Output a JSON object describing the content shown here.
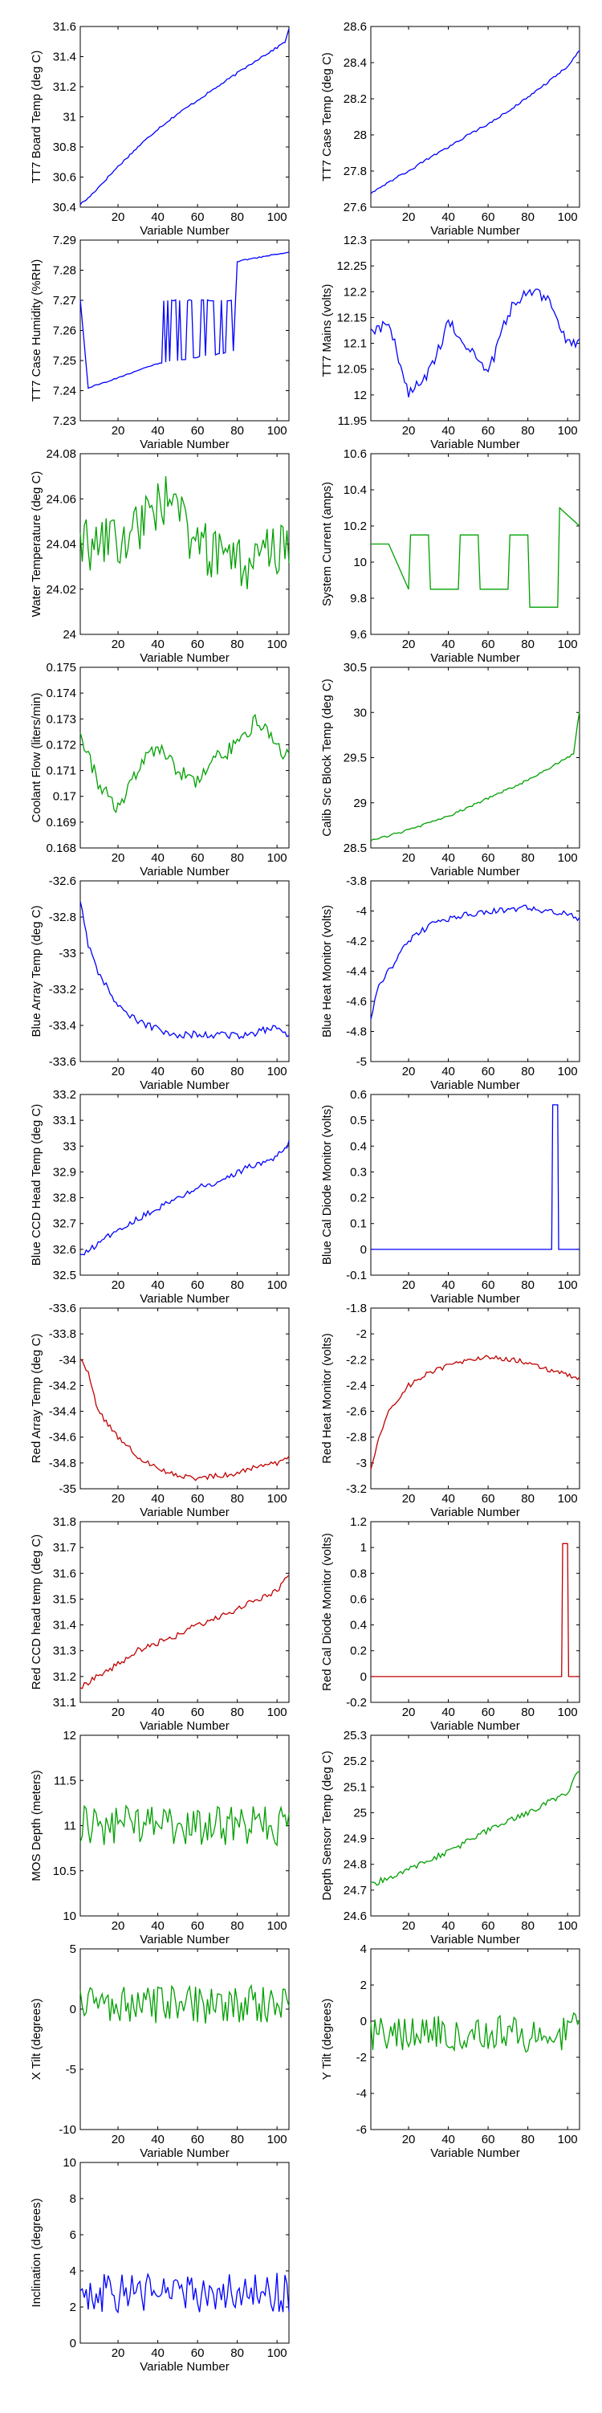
{
  "chart_data": [
    {
      "type": "line",
      "color": "#0000ff",
      "xlabel": "Variable Number",
      "ylabel": "TT7 Board Temp (deg C)",
      "xlim": [
        1,
        106
      ],
      "ylim": [
        30.4,
        31.6
      ],
      "xticks": [
        20,
        40,
        60,
        80,
        100
      ],
      "yticks": [
        "30.4",
        "30.6",
        "30.8",
        "31",
        "31.2",
        "31.4",
        "31.6"
      ],
      "signal": "trend",
      "x": [
        1,
        5,
        10,
        20,
        30,
        40,
        50,
        60,
        70,
        80,
        90,
        100,
        104,
        106
      ],
      "values": [
        30.42,
        30.46,
        30.53,
        30.67,
        30.8,
        30.92,
        31.02,
        31.11,
        31.2,
        31.29,
        31.38,
        31.46,
        31.5,
        31.58
      ]
    },
    {
      "type": "line",
      "color": "#0000ff",
      "xlabel": "Variable Number",
      "ylabel": "TT7 Case Temp (deg C)",
      "xlim": [
        1,
        106
      ],
      "ylim": [
        27.6,
        28.6
      ],
      "xticks": [
        20,
        40,
        60,
        80,
        100
      ],
      "yticks": [
        "27.6",
        "27.8",
        "28",
        "28.2",
        "28.4",
        "28.6"
      ],
      "signal": "trend",
      "x": [
        1,
        10,
        20,
        30,
        40,
        50,
        60,
        70,
        80,
        90,
        100,
        106
      ],
      "values": [
        27.68,
        27.74,
        27.8,
        27.87,
        27.93,
        28.0,
        28.06,
        28.13,
        28.21,
        28.29,
        28.38,
        28.47
      ]
    },
    {
      "type": "line",
      "color": "#0000ff",
      "xlabel": "Variable Number",
      "ylabel": "TT7 Case Humidity (%RH)",
      "xlim": [
        1,
        106
      ],
      "ylim": [
        7.23,
        7.29
      ],
      "xticks": [
        20,
        40,
        60,
        80,
        100
      ],
      "yticks": [
        "7.23",
        "7.24",
        "7.25",
        "7.26",
        "7.27",
        "7.28",
        "7.29"
      ],
      "signal": "humidity",
      "x": [
        1,
        5,
        10,
        40,
        78,
        80,
        106
      ],
      "values": [
        7.27,
        7.241,
        7.242,
        7.249,
        7.253,
        7.283,
        7.286
      ]
    },
    {
      "type": "line",
      "color": "#0000ff",
      "xlabel": "Variable Number",
      "ylabel": "TT7 Mains  (volts)",
      "xlim": [
        1,
        106
      ],
      "ylim": [
        11.95,
        12.3
      ],
      "xticks": [
        20,
        40,
        60,
        80,
        100
      ],
      "yticks": [
        "11.95",
        "12",
        "12.05",
        "12.1",
        "12.15",
        "12.2",
        "12.25",
        "12.3"
      ],
      "signal": "noisy",
      "noise": 0.012,
      "x": [
        1,
        10,
        20,
        30,
        40,
        50,
        60,
        70,
        80,
        90,
        100,
        106
      ],
      "values": [
        12.12,
        12.14,
        12.0,
        12.04,
        12.14,
        12.09,
        12.04,
        12.16,
        12.2,
        12.19,
        12.1,
        12.1
      ]
    },
    {
      "type": "line",
      "color": "#00a000",
      "xlabel": "Variable Number",
      "ylabel": "Water Temperature (deg C)",
      "xlim": [
        1,
        106
      ],
      "ylim": [
        24.0,
        24.08
      ],
      "xticks": [
        20,
        40,
        60,
        80,
        100
      ],
      "yticks": [
        "24",
        "24.02",
        "24.04",
        "24.06",
        "24.08"
      ],
      "signal": "noisy",
      "noise": 0.012,
      "x": [
        1,
        20,
        44,
        60,
        80,
        106
      ],
      "values": [
        24.04,
        24.04,
        24.06,
        24.04,
        24.03,
        24.04
      ]
    },
    {
      "type": "line",
      "color": "#00a000",
      "xlabel": "Variable Number",
      "ylabel": "System Current (amps)",
      "xlim": [
        1,
        106
      ],
      "ylim": [
        9.6,
        10.6
      ],
      "xticks": [
        20,
        40,
        60,
        80,
        100
      ],
      "yticks": [
        "9.6",
        "9.8",
        "10",
        "10.2",
        "10.4",
        "10.6"
      ],
      "signal": "steps",
      "x": [
        1,
        10,
        20,
        21,
        30,
        31,
        45,
        46,
        55,
        56,
        70,
        71,
        80,
        81,
        95,
        96,
        106
      ],
      "values": [
        10.1,
        10.1,
        9.85,
        10.15,
        10.15,
        9.85,
        9.85,
        10.15,
        10.15,
        9.85,
        9.85,
        10.15,
        10.15,
        9.75,
        9.75,
        10.3,
        10.2
      ]
    },
    {
      "type": "line",
      "color": "#00a000",
      "xlabel": "Variable Number",
      "ylabel": "Coolant Flow (liters/min)",
      "xlim": [
        1,
        106
      ],
      "ylim": [
        0.168,
        0.175
      ],
      "xticks": [
        20,
        40,
        60,
        80,
        100
      ],
      "yticks": [
        "0.168",
        "0.169",
        "0.17",
        "0.171",
        "0.172",
        "0.173",
        "0.174",
        "0.175"
      ],
      "signal": "noisy",
      "noise": 0.0003,
      "x": [
        1,
        10,
        20,
        30,
        40,
        50,
        60,
        70,
        80,
        90,
        100,
        106
      ],
      "values": [
        0.1725,
        0.1705,
        0.1695,
        0.171,
        0.172,
        0.171,
        0.1705,
        0.1715,
        0.172,
        0.173,
        0.172,
        0.1715
      ]
    },
    {
      "type": "line",
      "color": "#00a000",
      "xlabel": "Variable Number",
      "ylabel": "Calib Src Block Temp (deg C)",
      "xlim": [
        1,
        106
      ],
      "ylim": [
        28.5,
        30.5
      ],
      "xticks": [
        20,
        40,
        60,
        80,
        100
      ],
      "yticks": [
        "28.5",
        "29",
        "29.5",
        "30",
        "30.5"
      ],
      "signal": "trend",
      "x": [
        1,
        20,
        40,
        60,
        80,
        100,
        103,
        106
      ],
      "values": [
        28.58,
        28.7,
        28.85,
        29.05,
        29.25,
        29.5,
        29.55,
        30.02
      ]
    },
    {
      "type": "line",
      "color": "#0000ff",
      "xlabel": "Variable Number",
      "ylabel": "Blue Array Temp (deg C)",
      "xlim": [
        1,
        106
      ],
      "ylim": [
        -33.6,
        -32.6
      ],
      "xticks": [
        20,
        40,
        60,
        80,
        100
      ],
      "yticks": [
        "-32.6",
        "-32.8",
        "-33",
        "-33.2",
        "-33.4",
        "-33.6"
      ],
      "signal": "noisy",
      "noise": 0.02,
      "x": [
        1,
        5,
        10,
        20,
        30,
        40,
        50,
        60,
        70,
        80,
        90,
        100,
        106
      ],
      "values": [
        -32.7,
        -32.95,
        -33.1,
        -33.3,
        -33.38,
        -33.42,
        -33.45,
        -33.45,
        -33.45,
        -33.46,
        -33.44,
        -33.4,
        -33.45
      ]
    },
    {
      "type": "line",
      "color": "#0000ff",
      "xlabel": "Variable Number",
      "ylabel": "Blue Heat Monitor (volts)",
      "xlim": [
        1,
        106
      ],
      "ylim": [
        -5,
        -3.8
      ],
      "xticks": [
        20,
        40,
        60,
        80,
        100
      ],
      "yticks": [
        "-3.8",
        "-4",
        "-4.2",
        "-4.4",
        "-4.6",
        "-4.8",
        "-5"
      ],
      "signal": "noisy",
      "noise": 0.02,
      "x": [
        1,
        5,
        10,
        20,
        30,
        40,
        60,
        80,
        100,
        106
      ],
      "values": [
        -4.7,
        -4.5,
        -4.4,
        -4.2,
        -4.1,
        -4.05,
        -4.0,
        -3.98,
        -4.02,
        -4.05
      ]
    },
    {
      "type": "line",
      "color": "#0000ff",
      "xlabel": "Variable Number",
      "ylabel": "Blue CCD Head Temp (deg C)",
      "xlim": [
        1,
        106
      ],
      "ylim": [
        32.5,
        33.2
      ],
      "xticks": [
        20,
        40,
        60,
        80,
        100
      ],
      "yticks": [
        "32.5",
        "32.6",
        "32.7",
        "32.8",
        "32.9",
        "33",
        "33.1",
        "33.2"
      ],
      "signal": "noisy",
      "noise": 0.012,
      "x": [
        1,
        10,
        20,
        30,
        40,
        50,
        60,
        70,
        80,
        90,
        100,
        106
      ],
      "values": [
        32.57,
        32.62,
        32.68,
        32.72,
        32.76,
        32.8,
        32.84,
        32.86,
        32.9,
        32.93,
        32.96,
        33.01
      ]
    },
    {
      "type": "line",
      "color": "#0000ff",
      "xlabel": "Variable Number",
      "ylabel": "Blue Cal Diode Monitor (volts)",
      "xlim": [
        1,
        106
      ],
      "ylim": [
        -0.1,
        0.6
      ],
      "xticks": [
        20,
        40,
        60,
        80,
        100
      ],
      "yticks": [
        "-0.1",
        "0",
        "0.1",
        "0.2",
        "0.3",
        "0.4",
        "0.5",
        "0.6"
      ],
      "signal": "steps",
      "x": [
        1,
        92,
        92.5,
        95,
        95.5,
        106
      ],
      "values": [
        0,
        0,
        0.56,
        0.56,
        0,
        0
      ]
    },
    {
      "type": "line",
      "color": "#c00000",
      "xlabel": "Variable Number",
      "ylabel": "Red Array Temp (deg C)",
      "xlim": [
        1,
        106
      ],
      "ylim": [
        -35,
        -33.6
      ],
      "xticks": [
        20,
        40,
        60,
        80,
        100
      ],
      "yticks": [
        "-33.6",
        "-33.8",
        "-34",
        "-34.2",
        "-34.4",
        "-34.6",
        "-34.8",
        "-35"
      ],
      "signal": "noisy",
      "noise": 0.02,
      "x": [
        1,
        5,
        10,
        20,
        30,
        40,
        50,
        60,
        70,
        80,
        90,
        100,
        106
      ],
      "values": [
        -34.0,
        -34.1,
        -34.4,
        -34.6,
        -34.75,
        -34.85,
        -34.9,
        -34.92,
        -34.9,
        -34.88,
        -34.82,
        -34.8,
        -34.75
      ]
    },
    {
      "type": "line",
      "color": "#c00000",
      "xlabel": "Variable Number",
      "ylabel": "Red Heat Monitor (volts)",
      "xlim": [
        1,
        106
      ],
      "ylim": [
        -3.2,
        -1.8
      ],
      "xticks": [
        20,
        40,
        60,
        80,
        100
      ],
      "yticks": [
        "-1.8",
        "-2",
        "-2.2",
        "-2.4",
        "-2.6",
        "-2.8",
        "-3",
        "-3.2"
      ],
      "signal": "noisy",
      "noise": 0.02,
      "x": [
        1,
        5,
        10,
        20,
        30,
        40,
        50,
        60,
        70,
        80,
        90,
        100,
        106
      ],
      "values": [
        -3.05,
        -2.8,
        -2.6,
        -2.4,
        -2.3,
        -2.25,
        -2.2,
        -2.18,
        -2.2,
        -2.22,
        -2.28,
        -2.32,
        -2.35
      ]
    },
    {
      "type": "line",
      "color": "#c00000",
      "xlabel": "Variable Number",
      "ylabel": "Red CCD head temp (deg C)",
      "xlim": [
        1,
        106
      ],
      "ylim": [
        31.1,
        31.8
      ],
      "xticks": [
        20,
        40,
        60,
        80,
        100
      ],
      "yticks": [
        "31.1",
        "31.2",
        "31.3",
        "31.4",
        "31.5",
        "31.6",
        "31.7",
        "31.8"
      ],
      "signal": "noisy",
      "noise": 0.012,
      "x": [
        1,
        10,
        20,
        30,
        40,
        50,
        60,
        70,
        80,
        90,
        100,
        106
      ],
      "values": [
        31.16,
        31.2,
        31.25,
        31.3,
        31.33,
        31.36,
        31.4,
        31.43,
        31.46,
        31.5,
        31.53,
        31.6
      ]
    },
    {
      "type": "line",
      "color": "#c00000",
      "xlabel": "Variable Number",
      "ylabel": "Red Cal Diode Monitor (volts)",
      "xlim": [
        1,
        106
      ],
      "ylim": [
        -0.2,
        1.2
      ],
      "xticks": [
        20,
        40,
        60,
        80,
        100
      ],
      "yticks": [
        "-0.2",
        "0",
        "0.2",
        "0.4",
        "0.6",
        "0.8",
        "1",
        "1.2"
      ],
      "signal": "steps",
      "x": [
        1,
        97,
        97.5,
        100,
        100.5,
        106
      ],
      "values": [
        0,
        0,
        1.03,
        1.03,
        0,
        0
      ]
    },
    {
      "type": "line",
      "color": "#00a000",
      "xlabel": "Variable Number",
      "ylabel": "MOS Depth  (meters)",
      "xlim": [
        1,
        106
      ],
      "ylim": [
        10,
        12
      ],
      "xticks": [
        20,
        40,
        60,
        80,
        100
      ],
      "yticks": [
        "10",
        "10.5",
        "11",
        "11.5",
        "12"
      ],
      "signal": "noisy",
      "noise": 0.22,
      "x": [
        1,
        50,
        106
      ],
      "values": [
        11.0,
        11.0,
        11.0
      ]
    },
    {
      "type": "line",
      "color": "#00a000",
      "xlabel": "Variable Number",
      "ylabel": "Depth Sensor Temp (deg C)",
      "xlim": [
        1,
        106
      ],
      "ylim": [
        24.6,
        25.3
      ],
      "xticks": [
        20,
        40,
        60,
        80,
        100
      ],
      "yticks": [
        "24.6",
        "24.7",
        "24.8",
        "24.9",
        "25",
        "25.1",
        "25.2",
        "25.3"
      ],
      "signal": "noisy",
      "noise": 0.012,
      "x": [
        1,
        20,
        40,
        60,
        80,
        100,
        106
      ],
      "values": [
        24.72,
        24.78,
        24.85,
        24.93,
        25.0,
        25.08,
        25.17
      ]
    },
    {
      "type": "line",
      "color": "#00a000",
      "xlabel": "Variable Number",
      "ylabel": "X Tilt  (degrees)",
      "xlim": [
        1,
        106
      ],
      "ylim": [
        -10,
        5
      ],
      "xticks": [
        20,
        40,
        60,
        80,
        100
      ],
      "yticks": [
        "5",
        "0",
        "-5",
        "-10"
      ],
      "signal": "noisy",
      "noise": 1.6,
      "x": [
        1,
        50,
        106
      ],
      "values": [
        0.5,
        0.3,
        0.5
      ]
    },
    {
      "type": "line",
      "color": "#00a000",
      "xlabel": "Variable Number",
      "ylabel": "Y Tilt  (degrees)",
      "xlim": [
        1,
        106
      ],
      "ylim": [
        -6,
        4
      ],
      "xticks": [
        20,
        40,
        60,
        80,
        100
      ],
      "yticks": [
        "4",
        "2",
        "0",
        "-2",
        "-4",
        "-6"
      ],
      "signal": "noisy",
      "noise": 1.1,
      "x": [
        1,
        50,
        106
      ],
      "values": [
        -0.5,
        -0.8,
        -0.5
      ]
    },
    {
      "type": "line",
      "color": "#0000ff",
      "xlabel": "Variable Number",
      "ylabel": "Inclination  (degrees)",
      "xlim": [
        1,
        106
      ],
      "ylim": [
        0,
        10
      ],
      "xticks": [
        20,
        40,
        60,
        80,
        100
      ],
      "yticks": [
        "0",
        "2",
        "4",
        "6",
        "8",
        "10"
      ],
      "signal": "noisy",
      "noise": 1.1,
      "x": [
        1,
        50,
        106
      ],
      "values": [
        2.8,
        2.8,
        2.8
      ]
    }
  ]
}
